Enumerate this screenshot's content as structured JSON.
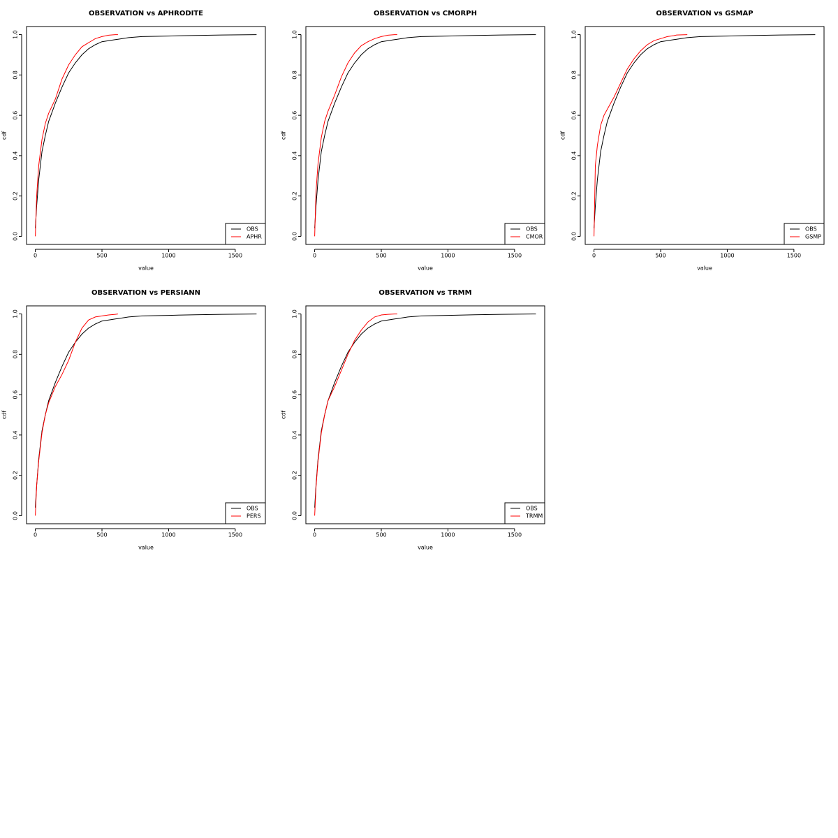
{
  "chart_data": [
    {
      "type": "line",
      "title": "OBSERVATION vs APHRODITE",
      "x_label": "value",
      "y_label": "cdf",
      "x": [
        0,
        10,
        25,
        50,
        75,
        100,
        150,
        200,
        250,
        300,
        350,
        400,
        450,
        500,
        550,
        600,
        620,
        700,
        800,
        1000,
        1200,
        1400,
        1660
      ],
      "series": [
        {
          "name": "OBS",
          "color": "#000000",
          "values": [
            0.04,
            0.15,
            0.28,
            0.42,
            0.5,
            0.57,
            0.66,
            0.74,
            0.81,
            0.86,
            0.9,
            0.93,
            0.95,
            0.965,
            0.97,
            0.975,
            0.977,
            0.985,
            0.99,
            0.993,
            0.996,
            0.998,
            1.0
          ]
        },
        {
          "name": "APHR",
          "color": "#ff0000",
          "values": [
            0.0,
            0.2,
            0.35,
            0.48,
            0.56,
            0.61,
            0.68,
            0.78,
            0.85,
            0.9,
            0.94,
            0.96,
            0.98,
            0.99,
            0.997,
            1.0,
            1.0,
            null,
            null,
            null,
            null,
            null,
            null
          ]
        }
      ],
      "xlim": [
        -66,
        1726
      ],
      "ylim": [
        -0.04,
        1.04
      ],
      "xticks": [
        0,
        500,
        1000,
        1500
      ],
      "yticks": [
        {
          "value": 0,
          "label": "0.0"
        },
        0.2,
        0.4,
        0.6,
        0.8,
        {
          "value": 1,
          "label": "1.0"
        }
      ],
      "legend": "bottom right"
    },
    {
      "type": "line",
      "title": "OBSERVATION vs CMORPH",
      "x_label": "value",
      "y_label": "cdf",
      "x": [
        0,
        10,
        25,
        50,
        75,
        100,
        150,
        200,
        250,
        300,
        350,
        400,
        450,
        500,
        550,
        600,
        620,
        700,
        800,
        1000,
        1200,
        1400,
        1660
      ],
      "series": [
        {
          "name": "OBS",
          "color": "#000000",
          "values": [
            0.04,
            0.15,
            0.28,
            0.42,
            0.5,
            0.57,
            0.66,
            0.74,
            0.81,
            0.86,
            0.9,
            0.93,
            0.95,
            0.965,
            0.97,
            0.975,
            0.977,
            0.985,
            0.99,
            0.993,
            0.996,
            0.998,
            1.0
          ]
        },
        {
          "name": "CMOR",
          "color": "#ff0000",
          "values": [
            0.0,
            0.22,
            0.36,
            0.49,
            0.57,
            0.62,
            0.7,
            0.79,
            0.86,
            0.91,
            0.945,
            0.965,
            0.98,
            0.99,
            0.997,
            1.0,
            1.0,
            null,
            null,
            null,
            null,
            null,
            null
          ]
        }
      ],
      "xlim": [
        -66,
        1726
      ],
      "ylim": [
        -0.04,
        1.04
      ],
      "xticks": [
        0,
        500,
        1000,
        1500
      ],
      "yticks": [
        {
          "value": 0,
          "label": "0.0"
        },
        0.2,
        0.4,
        0.6,
        0.8,
        {
          "value": 1,
          "label": "1.0"
        }
      ],
      "legend": "bottom right"
    },
    {
      "type": "line",
      "title": "OBSERVATION vs GSMAP",
      "x_label": "value",
      "y_label": "cdf",
      "x": [
        0,
        10,
        25,
        50,
        75,
        100,
        150,
        200,
        250,
        300,
        350,
        400,
        450,
        500,
        550,
        600,
        620,
        700,
        800,
        1000,
        1200,
        1400,
        1660
      ],
      "series": [
        {
          "name": "OBS",
          "color": "#000000",
          "values": [
            0.04,
            0.15,
            0.28,
            0.42,
            0.5,
            0.57,
            0.66,
            0.74,
            0.81,
            0.86,
            0.9,
            0.93,
            0.95,
            0.965,
            0.97,
            0.975,
            0.977,
            0.985,
            0.99,
            0.993,
            0.996,
            0.998,
            1.0
          ]
        },
        {
          "name": "GSMP",
          "color": "#ff0000",
          "values": [
            0.0,
            0.35,
            0.45,
            0.55,
            0.6,
            0.63,
            0.69,
            0.76,
            0.83,
            0.88,
            0.92,
            0.95,
            0.97,
            0.98,
            0.99,
            0.995,
            0.998,
            1.0,
            null,
            null,
            null,
            null,
            null
          ]
        }
      ],
      "xlim": [
        -66,
        1726
      ],
      "ylim": [
        -0.04,
        1.04
      ],
      "xticks": [
        0,
        500,
        1000,
        1500
      ],
      "yticks": [
        {
          "value": 0,
          "label": "0.0"
        },
        0.2,
        0.4,
        0.6,
        0.8,
        {
          "value": 1,
          "label": "1.0"
        }
      ],
      "legend": "bottom right"
    },
    {
      "type": "line",
      "title": "OBSERVATION vs PERSIANN",
      "x_label": "value",
      "y_label": "cdf",
      "x": [
        0,
        10,
        25,
        50,
        75,
        100,
        150,
        200,
        250,
        300,
        350,
        400,
        450,
        500,
        550,
        600,
        620,
        700,
        800,
        1000,
        1200,
        1400,
        1660
      ],
      "series": [
        {
          "name": "OBS",
          "color": "#000000",
          "values": [
            0.04,
            0.15,
            0.28,
            0.42,
            0.5,
            0.57,
            0.66,
            0.74,
            0.81,
            0.86,
            0.9,
            0.93,
            0.95,
            0.965,
            0.97,
            0.975,
            0.977,
            0.985,
            0.99,
            0.993,
            0.996,
            0.998,
            1.0
          ]
        },
        {
          "name": "PERS",
          "color": "#ff0000",
          "values": [
            0.0,
            0.15,
            0.27,
            0.41,
            0.5,
            0.56,
            0.64,
            0.7,
            0.77,
            0.86,
            0.93,
            0.97,
            0.985,
            0.99,
            0.995,
            0.998,
            1.0,
            null,
            null,
            null,
            null,
            null,
            null
          ]
        }
      ],
      "xlim": [
        -66,
        1726
      ],
      "ylim": [
        -0.04,
        1.04
      ],
      "xticks": [
        0,
        500,
        1000,
        1500
      ],
      "yticks": [
        {
          "value": 0,
          "label": "0.0"
        },
        0.2,
        0.4,
        0.6,
        0.8,
        {
          "value": 1,
          "label": "1.0"
        }
      ],
      "legend": "bottom right"
    },
    {
      "type": "line",
      "title": "OBSERVATION vs TRMM",
      "x_label": "value",
      "y_label": "cdf",
      "x": [
        0,
        10,
        25,
        50,
        75,
        100,
        150,
        200,
        250,
        300,
        350,
        400,
        450,
        500,
        550,
        600,
        620,
        700,
        800,
        1000,
        1200,
        1400,
        1660
      ],
      "series": [
        {
          "name": "OBS",
          "color": "#000000",
          "values": [
            0.04,
            0.15,
            0.28,
            0.42,
            0.5,
            0.57,
            0.66,
            0.74,
            0.81,
            0.86,
            0.9,
            0.93,
            0.95,
            0.965,
            0.97,
            0.975,
            0.977,
            0.985,
            0.99,
            0.993,
            0.996,
            0.998,
            1.0
          ]
        },
        {
          "name": "TRMM",
          "color": "#ff0000",
          "values": [
            0.0,
            0.14,
            0.27,
            0.41,
            0.5,
            0.57,
            0.64,
            0.72,
            0.8,
            0.87,
            0.92,
            0.96,
            0.985,
            0.995,
            0.998,
            1.0,
            1.0,
            null,
            null,
            null,
            null,
            null,
            null
          ]
        }
      ],
      "xlim": [
        -66,
        1726
      ],
      "ylim": [
        -0.04,
        1.04
      ],
      "xticks": [
        0,
        500,
        1000,
        1500
      ],
      "yticks": [
        {
          "value": 0,
          "label": "0.0"
        },
        0.2,
        0.4,
        0.6,
        0.8,
        {
          "value": 1,
          "label": "1.0"
        }
      ],
      "legend": "bottom right"
    }
  ]
}
